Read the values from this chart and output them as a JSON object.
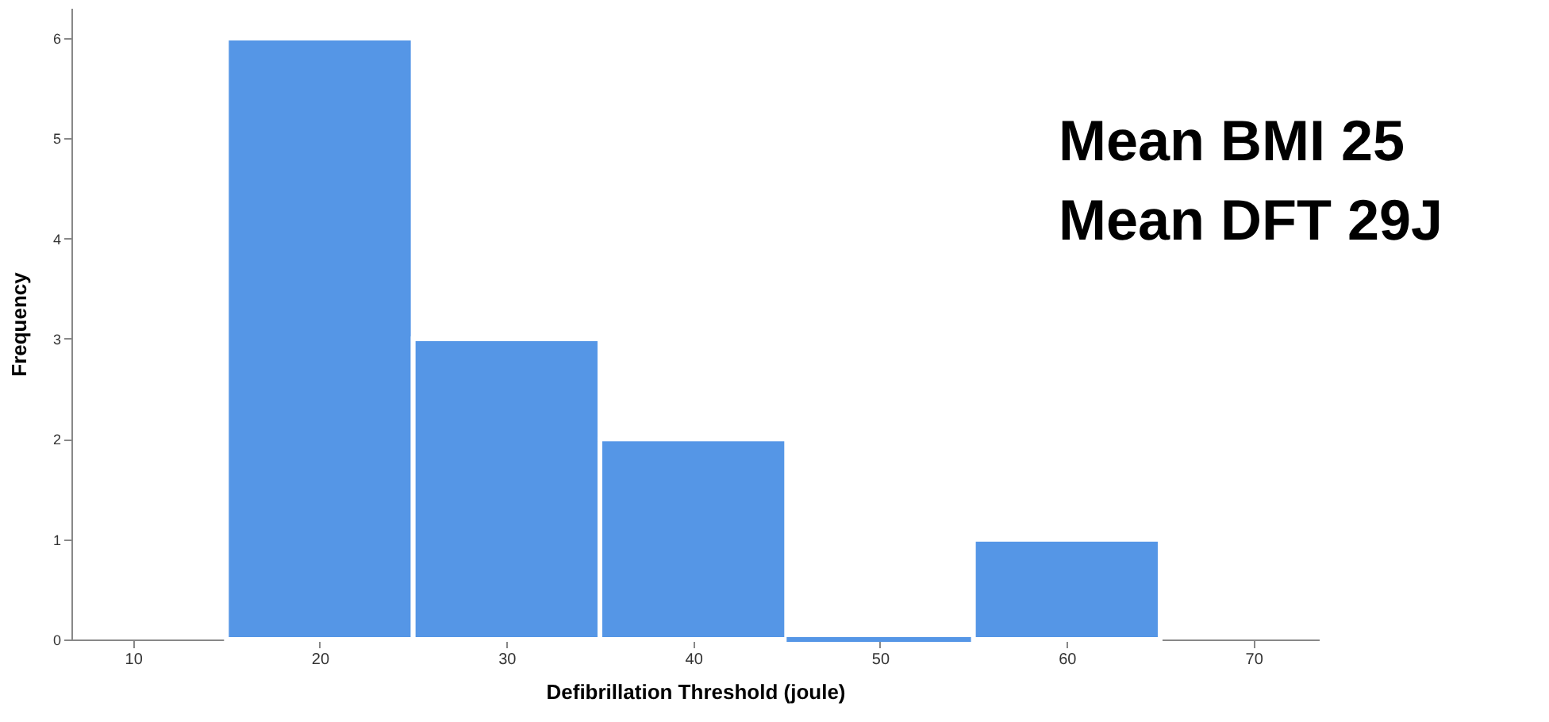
{
  "chart_data": {
    "type": "histogram",
    "xlabel": "Defibrillation Threshold (joule)",
    "ylabel": "Frequency",
    "bins": [
      15,
      25,
      35,
      45,
      55,
      65
    ],
    "values": [
      6,
      3,
      2,
      0,
      1
    ],
    "color": "#5596e6",
    "xlim": [
      6.7,
      73.5
    ],
    "xticks": [
      10,
      20,
      30,
      40,
      50,
      60,
      70
    ],
    "ylim": [
      0,
      6.3
    ],
    "yticks": [
      0,
      1,
      2,
      3,
      4,
      5,
      6
    ],
    "grid": false,
    "annotations": [
      "Mean BMI 25",
      "Mean DFT 29J"
    ]
  }
}
